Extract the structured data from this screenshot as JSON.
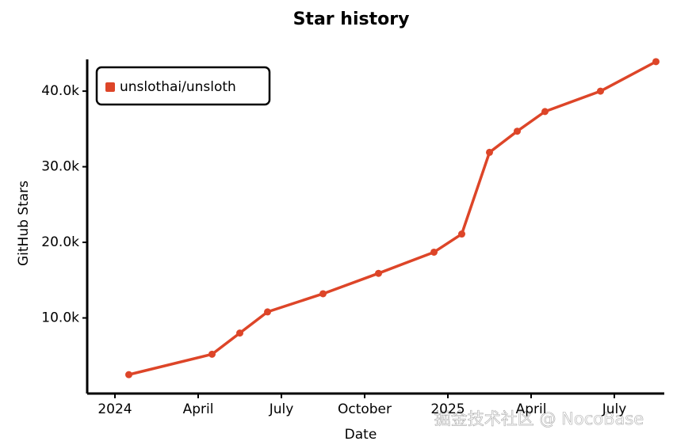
{
  "chart_data": {
    "type": "line",
    "title": "Star history",
    "x_label": "Date",
    "y_label": "GitHub Stars",
    "x": [
      "2024-01",
      "2024-04",
      "2024-05",
      "2024-06",
      "2024-08",
      "2024-10",
      "2024-12",
      "2025-01",
      "2025-02",
      "2025-03",
      "2025-04",
      "2025-06",
      "2025-08"
    ],
    "series": [
      {
        "name": "unslothai/unsloth",
        "color": "#dd4528",
        "values": [
          2500,
          5200,
          8000,
          10800,
          13200,
          15900,
          18700,
          21100,
          31900,
          34700,
          37300,
          40000,
          43900
        ]
      }
    ],
    "xlim": [
      "2023-12",
      "2025-09"
    ],
    "xticks": [
      {
        "value": "2024-01",
        "label": "2024"
      },
      {
        "value": "2024-04",
        "label": "April"
      },
      {
        "value": "2024-07",
        "label": "July"
      },
      {
        "value": "2024-10",
        "label": "October"
      },
      {
        "value": "2025-01",
        "label": "2025"
      },
      {
        "value": "2025-04",
        "label": "April"
      },
      {
        "value": "2025-07",
        "label": "July"
      }
    ],
    "ylim": [
      0,
      44200
    ],
    "yticks": [
      {
        "value": 10000,
        "label": "10.0k"
      },
      {
        "value": 20000,
        "label": "20.0k"
      },
      {
        "value": 30000,
        "label": "30.0k"
      },
      {
        "value": 40000,
        "label": "40.0k"
      }
    ],
    "legend": "top-left",
    "grid": false
  },
  "watermark": "掘金技术社区 @ NocoBase"
}
